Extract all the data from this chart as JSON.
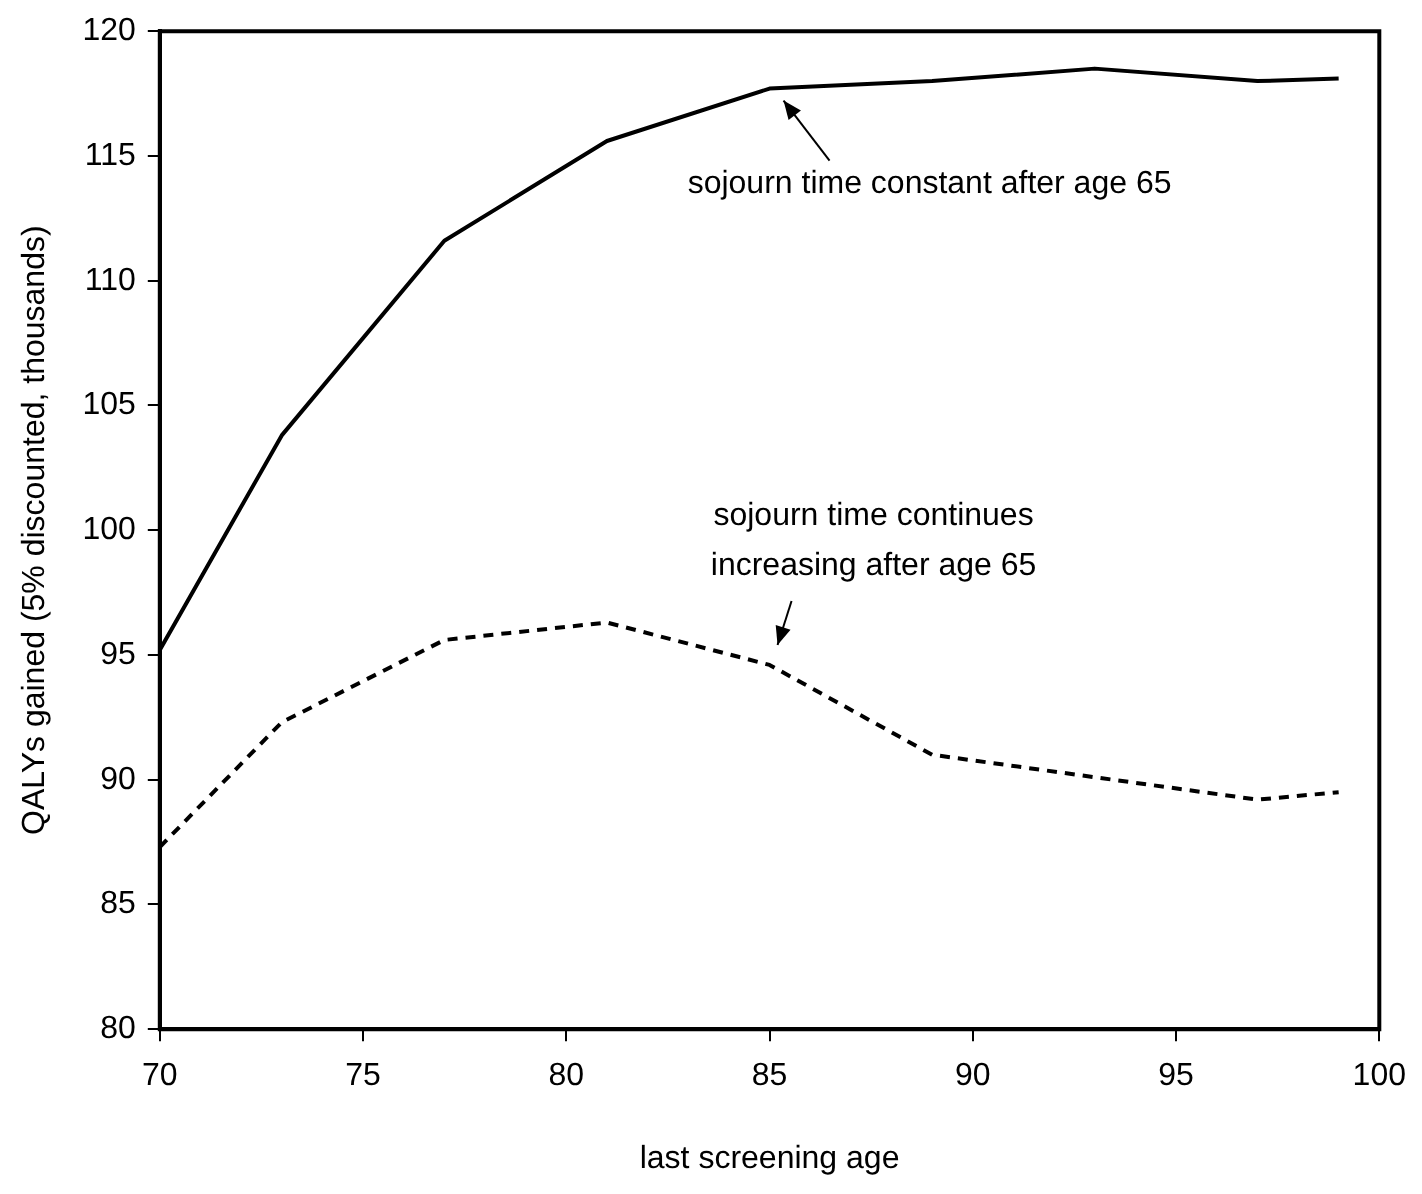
{
  "chart_data": {
    "type": "line",
    "xlabel": "last screening age",
    "ylabel": "QALYs gained (5% discounted, thousands)",
    "x": [
      70,
      73,
      77,
      81,
      85,
      89,
      93,
      97,
      99
    ],
    "series": [
      {
        "color": "#000000",
        "line_style": "solid",
        "values": [
          95.2,
          103.8,
          111.6,
          115.6,
          117.7,
          118.0,
          118.5,
          118.0,
          118.1
        ]
      },
      {
        "color": "#000000",
        "line_style": "dashed",
        "values": [
          87.3,
          92.3,
          95.6,
          96.3,
          94.6,
          91.0,
          90.1,
          89.2,
          89.5
        ]
      }
    ],
    "xlim": [
      70,
      100
    ],
    "xticks": [
      70,
      75,
      80,
      85,
      90,
      95,
      100
    ],
    "ylim": [
      80,
      120
    ],
    "yticks": [
      80,
      85,
      90,
      95,
      100,
      105,
      110,
      115,
      120
    ],
    "grid": false,
    "legend": false,
    "marker": "none",
    "annotations": [
      {
        "text": "sojourn time constant after age 65",
        "x": 85,
        "y": 117.7
      },
      {
        "text": "sojourn time continues\nincreasing after age 65",
        "x": 85,
        "y": 94.6
      }
    ]
  }
}
